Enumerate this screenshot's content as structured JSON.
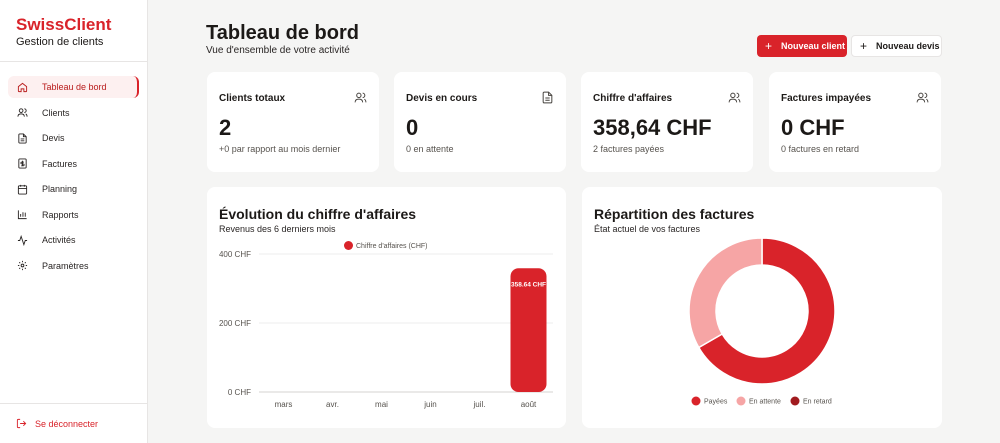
{
  "brand": {
    "name": "SwissClient",
    "subtitle": "Gestion de clients"
  },
  "nav": {
    "items": [
      {
        "label": "Tableau de bord",
        "icon": "home-icon",
        "active": true
      },
      {
        "label": "Clients",
        "icon": "users-icon",
        "active": false
      },
      {
        "label": "Devis",
        "icon": "file-icon",
        "active": false
      },
      {
        "label": "Factures",
        "icon": "invoice-icon",
        "active": false
      },
      {
        "label": "Planning",
        "icon": "calendar-icon",
        "active": false
      },
      {
        "label": "Rapports",
        "icon": "bar-chart-icon",
        "active": false
      },
      {
        "label": "Activités",
        "icon": "activity-icon",
        "active": false
      },
      {
        "label": "Paramètres",
        "icon": "gear-icon",
        "active": false
      }
    ],
    "logout": "Se déconnecter"
  },
  "header": {
    "title": "Tableau de bord",
    "subtitle": "Vue d'ensemble de votre activité",
    "new_client": "Nouveau client",
    "new_quote": "Nouveau devis"
  },
  "stats": [
    {
      "title": "Clients totaux",
      "value": "2",
      "sub": "+0 par rapport au mois dernier",
      "icon": "users-icon"
    },
    {
      "title": "Devis en cours",
      "value": "0",
      "sub": "0 en attente",
      "icon": "file-icon"
    },
    {
      "title": "Chiffre d'affaires",
      "value": "358,64 CHF",
      "sub": "2 factures payées",
      "icon": "users-icon"
    },
    {
      "title": "Factures impayées",
      "value": "0 CHF",
      "sub": "0 factures en retard",
      "icon": "users-icon"
    }
  ],
  "revenue_card": {
    "title": "Évolution du chiffre d'affaires",
    "subtitle": "Revenus des 6 derniers mois"
  },
  "invoices_card": {
    "title": "Répartition des factures",
    "subtitle": "État actuel de vos factures"
  },
  "colors": {
    "brand": "#d9232a",
    "paid": "#d9232a",
    "pending": "#f6a5a5",
    "late": "#a11b1f"
  },
  "chart_data": [
    {
      "type": "bar",
      "categories": [
        "mars",
        "avr.",
        "mai",
        "juin",
        "juil.",
        "août"
      ],
      "series": [
        {
          "name": "Chiffre d'affaires (CHF)",
          "values": [
            0,
            0,
            0,
            0,
            0,
            358.64
          ]
        }
      ],
      "ylim": [
        0,
        400
      ],
      "yticks": [
        {
          "value": 0,
          "label": "0 CHF"
        },
        {
          "value": 200,
          "label": "200 CHF"
        },
        {
          "value": 400,
          "label": "400 CHF"
        }
      ],
      "data_labels": [
        {
          "index": 5,
          "text": "358.64 CHF"
        }
      ],
      "legend": "top-center",
      "grid": true
    },
    {
      "type": "pie",
      "donut": true,
      "labels": [
        "Payées",
        "En attente",
        "En retard"
      ],
      "values": [
        2,
        1,
        0
      ],
      "legend": "bottom-center"
    }
  ]
}
